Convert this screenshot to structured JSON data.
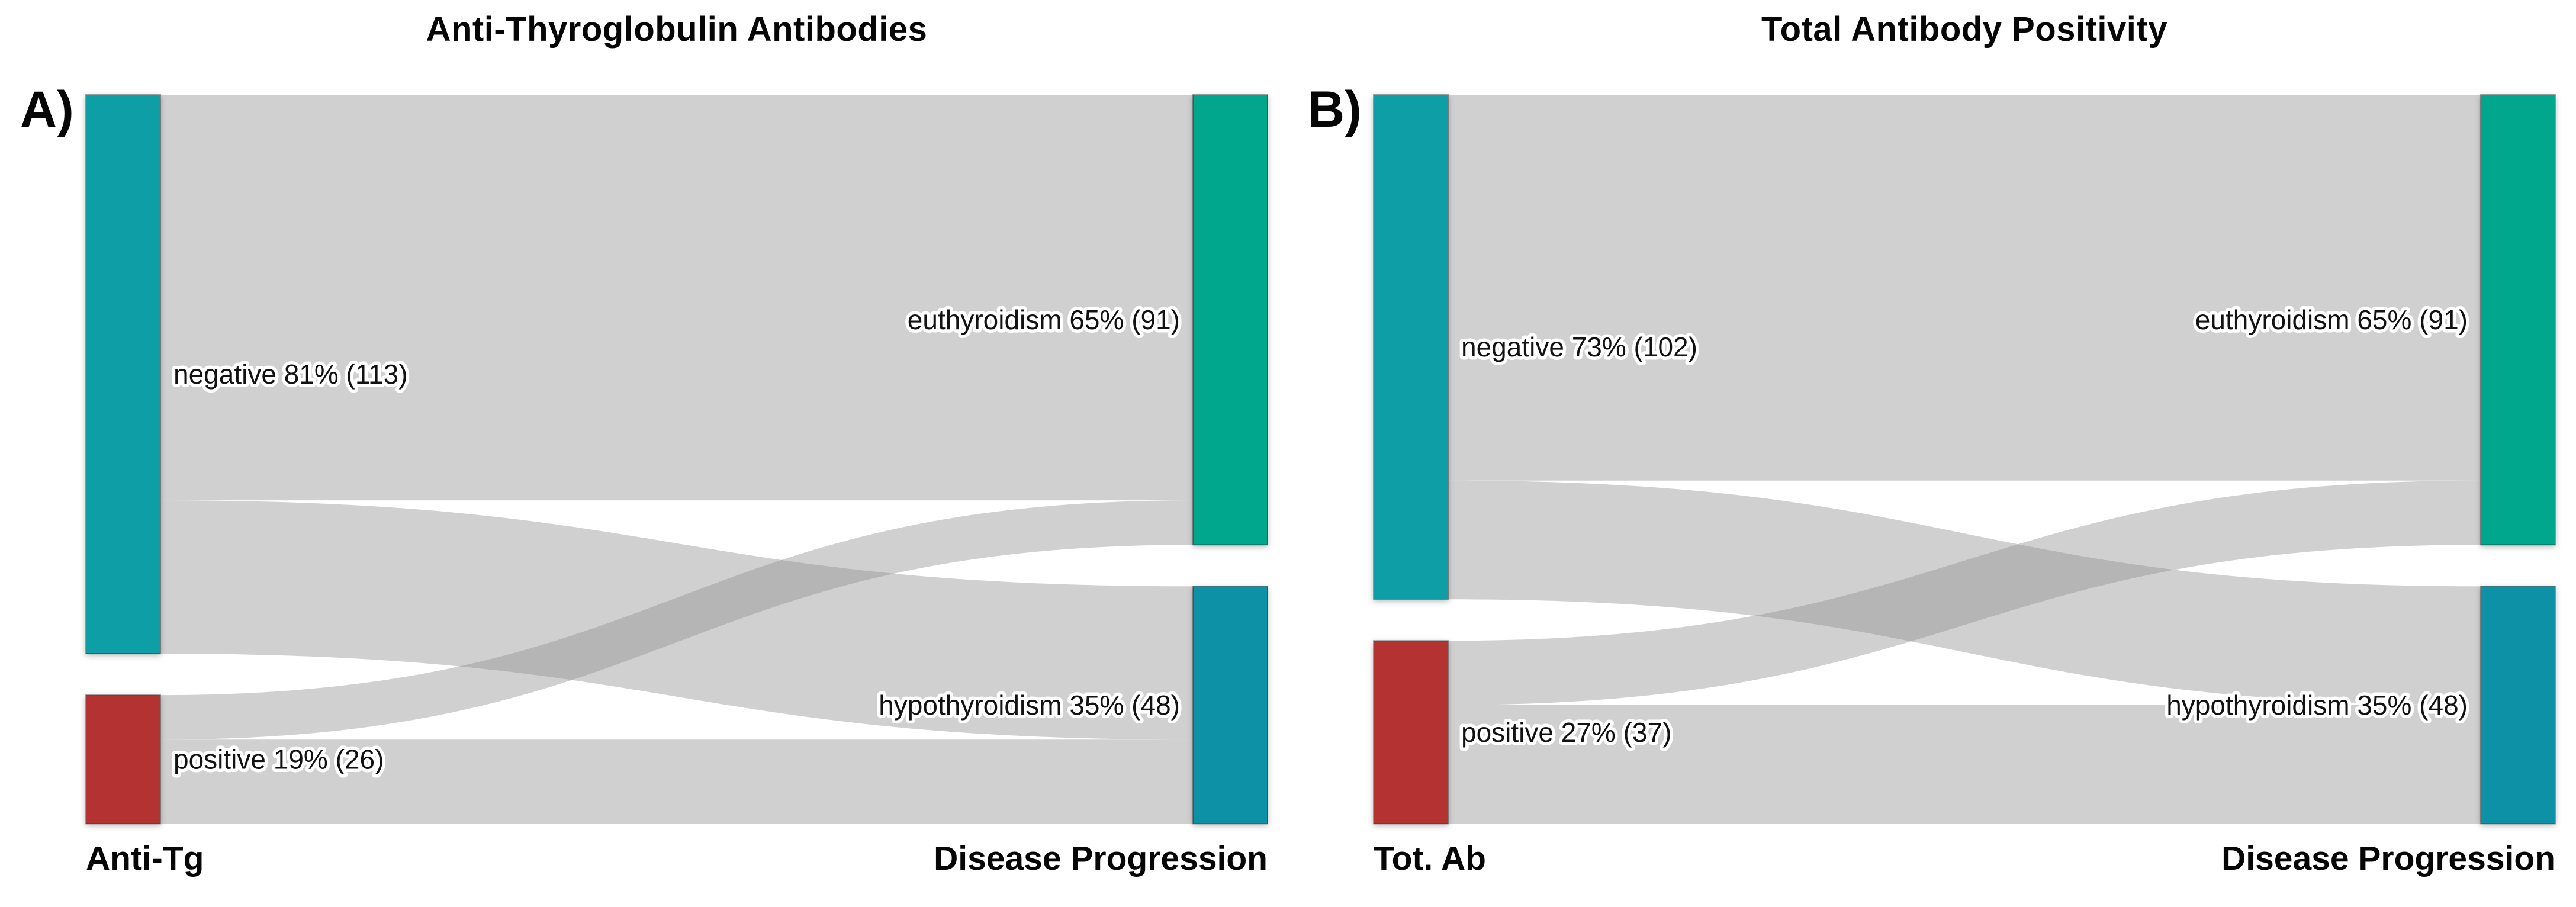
{
  "figure": {
    "background": "#ffffff",
    "text_color": "#060606"
  },
  "chart_data": [
    {
      "type": "sankey",
      "panel_letter": "A)",
      "title": "Anti-Thyroglobulin Antibodies",
      "source_axis_label": "Anti-Tg",
      "target_axis_label": "Disease Progression",
      "link_fill": "#909090",
      "link_opacity": 0.42,
      "nodes": {
        "sources": [
          {
            "name": "negative",
            "label": "negative 81% (113)",
            "percent": 81,
            "count": 113,
            "color": "#079fa5"
          },
          {
            "name": "positive",
            "label": "positive 19% (26)",
            "percent": 19,
            "count": 26,
            "color": "#b53232"
          }
        ],
        "targets": [
          {
            "name": "euthyroidism",
            "label": "euthyroidism 65% (91)",
            "percent": 65,
            "count": 91,
            "color": "#04a78c"
          },
          {
            "name": "hypothyroidism",
            "label": "hypothyroidism 35% (48)",
            "percent": 35,
            "count": 48,
            "color": "#1191a7"
          }
        ]
      },
      "links": [
        {
          "source": "negative",
          "target": "euthyroidism",
          "value": 82
        },
        {
          "source": "negative",
          "target": "hypothyroidism",
          "value": 31
        },
        {
          "source": "positive",
          "target": "euthyroidism",
          "value": 9
        },
        {
          "source": "positive",
          "target": "hypothyroidism",
          "value": 17
        }
      ]
    },
    {
      "type": "sankey",
      "panel_letter": "B)",
      "title": "Total Antibody Positivity",
      "source_axis_label": "Tot. Ab",
      "target_axis_label": "Disease Progression",
      "link_fill": "#909090",
      "link_opacity": 0.42,
      "nodes": {
        "sources": [
          {
            "name": "negative",
            "label": "negative 73% (102)",
            "percent": 73,
            "count": 102,
            "color": "#079fa5"
          },
          {
            "name": "positive",
            "label": "positive 27% (37)",
            "percent": 27,
            "count": 37,
            "color": "#b53232"
          }
        ],
        "targets": [
          {
            "name": "euthyroidism",
            "label": "euthyroidism 65% (91)",
            "percent": 65,
            "count": 91,
            "color": "#04a78c"
          },
          {
            "name": "hypothyroidism",
            "label": "hypothyroidism 35% (48)",
            "percent": 35,
            "count": 48,
            "color": "#1191a7"
          }
        ]
      },
      "links": [
        {
          "source": "negative",
          "target": "euthyroidism",
          "value": 78
        },
        {
          "source": "negative",
          "target": "hypothyroidism",
          "value": 24
        },
        {
          "source": "positive",
          "target": "euthyroidism",
          "value": 13
        },
        {
          "source": "positive",
          "target": "hypothyroidism",
          "value": 24
        }
      ]
    }
  ]
}
